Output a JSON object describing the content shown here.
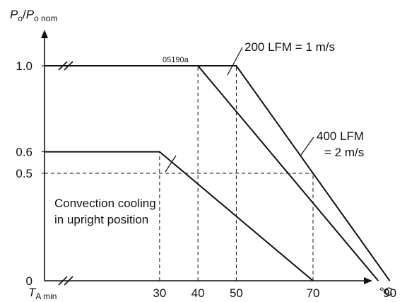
{
  "chart_data": {
    "type": "line",
    "title": "",
    "reference_code": "05190a",
    "y_label": {
      "P1": "P",
      "s1": "o",
      "slash": "/",
      "P2": "P",
      "s2": "o nom"
    },
    "x_label": {
      "main": "T",
      "sub": "A min"
    },
    "x_unit": "°C",
    "x_ticks": [
      {
        "value": 30,
        "label": "30"
      },
      {
        "value": 40,
        "label": "40"
      },
      {
        "value": 50,
        "label": "50"
      },
      {
        "value": 70,
        "label": "70"
      },
      {
        "value": 90,
        "label": "90"
      }
    ],
    "y_ticks": [
      {
        "value": 0,
        "label": "0"
      },
      {
        "value": 0.5,
        "label": "0.5"
      },
      {
        "value": 0.6,
        "label": "0.6"
      },
      {
        "value": 1.0,
        "label": "1.0"
      }
    ],
    "y_axis_break_at": 1.0,
    "x_axis_break": true,
    "xlim": [
      0,
      96
    ],
    "ylim": [
      0,
      1.2
    ],
    "series": [
      {
        "name": "Convection cooling in upright position",
        "x": [
          0,
          30,
          70
        ],
        "y": [
          0.6,
          0.6,
          0
        ]
      },
      {
        "name": "200 LFM = 1 m/s",
        "x": [
          10,
          40,
          87
        ],
        "y": [
          1.0,
          1.0,
          0
        ]
      },
      {
        "name": "400 LFM = 2 m/s",
        "x": [
          10,
          50,
          90
        ],
        "y": [
          1.0,
          1.0,
          0
        ]
      }
    ],
    "dashed_guides": [
      {
        "x": 30,
        "from_y": 0,
        "to_y": 0.6
      },
      {
        "x": 40,
        "from_y": 0,
        "to_y": 1.0
      },
      {
        "x": 50,
        "from_y": 0,
        "to_y": 1.0
      },
      {
        "x": 70,
        "from_y": 0,
        "to_y": 0.5
      },
      {
        "y": 0.5,
        "from_x": 0,
        "to_x": 70
      }
    ],
    "annotations": [
      {
        "id": "conv",
        "lines": [
          "Convection cooling",
          "in upright position"
        ],
        "points_to": {
          "x": 35,
          "y": 0.45
        }
      },
      {
        "id": "lfm200",
        "lines": [
          "200 LFM = 1 m/s"
        ],
        "points_to": {
          "x": 41.5,
          "y": 0.95
        }
      },
      {
        "id": "lfm400",
        "lines": [
          "400 LFM",
          "= 2 m/s"
        ],
        "points_to": {
          "x": 68,
          "y": 0.55
        }
      }
    ]
  }
}
